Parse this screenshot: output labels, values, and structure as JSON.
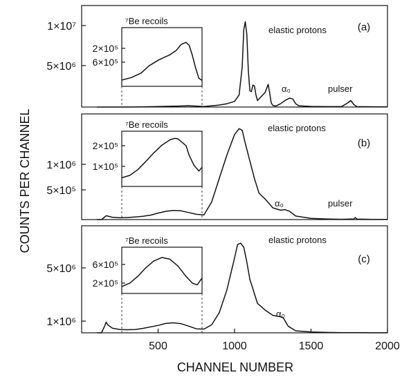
{
  "chart_data": [
    {
      "type": "line",
      "panel_label": "(a)",
      "x": [
        100,
        200,
        300,
        400,
        500,
        600,
        700,
        800,
        850,
        900,
        950,
        1000,
        1030,
        1050,
        1060,
        1070,
        1080,
        1090,
        1100,
        1110,
        1120,
        1130,
        1140,
        1150,
        1160,
        1180,
        1200,
        1220,
        1230,
        1240,
        1250,
        1270,
        1300,
        1330,
        1360,
        1380,
        1400,
        1420,
        1500,
        1600,
        1700,
        1740,
        1760,
        1780,
        1800,
        1900,
        2000
      ],
      "y": [
        0,
        0,
        0,
        20000,
        60000,
        100000,
        160000,
        60000,
        150000,
        250000,
        400000,
        700000,
        1500000,
        5000000,
        9500000,
        10500000,
        9000000,
        4500000,
        2000000,
        1900000,
        2700000,
        2600000,
        1500000,
        800000,
        1000000,
        1400000,
        1800000,
        2800000,
        1700000,
        500000,
        200000,
        120000,
        400000,
        800000,
        1100000,
        1000000,
        400000,
        150000,
        80000,
        50000,
        60000,
        500000,
        800000,
        300000,
        50000,
        30000,
        20000
      ],
      "ylim": [
        0,
        12500000
      ],
      "yticks": [
        "5×10⁶",
        "1×10⁷"
      ],
      "annotations": [
        "elastic protons",
        "α₀",
        "pulser"
      ],
      "inset": {
        "title": "⁷Be recoils",
        "yticks": [
          "2×10⁵",
          "6×10⁵"
        ],
        "ylim": [
          0,
          8000000
        ],
        "x": [
          300,
          360,
          420,
          470,
          530,
          560,
          600,
          640,
          670,
          700,
          720,
          740,
          760,
          780,
          800
        ],
        "y": [
          850000,
          1200000,
          1800000,
          2800000,
          3600000,
          3900000,
          4300000,
          4900000,
          5700000,
          6000000,
          5600000,
          4200000,
          2500000,
          1100000,
          800000
        ]
      }
    },
    {
      "type": "line",
      "panel_label": "(b)",
      "x": [
        100,
        130,
        160,
        170,
        200,
        250,
        300,
        350,
        400,
        450,
        500,
        550,
        600,
        650,
        700,
        750,
        800,
        850,
        900,
        950,
        1000,
        1030,
        1050,
        1070,
        1100,
        1130,
        1160,
        1200,
        1250,
        1300,
        1330,
        1360,
        1400,
        1500,
        1600,
        1700,
        1780,
        1790,
        1800,
        1900,
        2000
      ],
      "y": [
        0,
        0,
        65000,
        60000,
        40000,
        30000,
        35000,
        45000,
        55000,
        75000,
        110000,
        140000,
        155000,
        150000,
        120000,
        90000,
        80000,
        300000,
        700000,
        1100000,
        1450000,
        1550000,
        1520000,
        1300000,
        1000000,
        700000,
        450000,
        350000,
        200000,
        160000,
        170000,
        140000,
        60000,
        20000,
        10000,
        5000,
        10000,
        35000,
        8000,
        4000,
        2000
      ],
      "ylim": [
        0,
        1800000
      ],
      "yticks": [
        "5×10⁵",
        "1×10⁶"
      ],
      "annotations": [
        "elastic protons",
        "α₀",
        "pulser"
      ],
      "inset": {
        "title": "⁷Be recoils",
        "yticks": [
          "1×10⁵",
          "2×10⁵"
        ],
        "ylim": [
          0,
          1150000
        ],
        "x": [
          300,
          350,
          400,
          450,
          500,
          550,
          600,
          630,
          650,
          700,
          720,
          750,
          780,
          800
        ],
        "y": [
          180000,
          230000,
          350000,
          520000,
          700000,
          860000,
          970000,
          1000000,
          990000,
          850000,
          650000,
          440000,
          320000,
          400000
        ]
      }
    },
    {
      "type": "line",
      "panel_label": "(c)",
      "x": [
        100,
        130,
        150,
        160,
        170,
        200,
        250,
        300,
        350,
        400,
        500,
        550,
        600,
        650,
        700,
        750,
        800,
        850,
        900,
        950,
        1000,
        1020,
        1040,
        1060,
        1080,
        1100,
        1150,
        1200,
        1250,
        1300,
        1320,
        1350,
        1400,
        1500,
        1600,
        1700,
        1800,
        1900,
        2000
      ],
      "y": [
        0,
        0,
        500000,
        800000,
        600000,
        350000,
        250000,
        230000,
        250000,
        330000,
        550000,
        700000,
        750000,
        680000,
        500000,
        300000,
        280000,
        600000,
        1500000,
        3200000,
        5600000,
        6600000,
        6700000,
        6400000,
        5300000,
        4000000,
        2200000,
        1700000,
        1300000,
        1200000,
        1100000,
        500000,
        150000,
        60000,
        30000,
        15000,
        10000,
        5000,
        3000
      ],
      "ylim": [
        0,
        8000000
      ],
      "yticks": [
        "1×10⁶",
        "5×10⁶"
      ],
      "annotations": [
        "elastic protons",
        "α₀"
      ],
      "inset": {
        "title": "⁷Be recoils",
        "yticks": [
          "2×10⁵",
          "6×10⁵"
        ],
        "ylim": [
          0,
          13500000
        ],
        "x": [
          300,
          350,
          400,
          450,
          500,
          550,
          600,
          650,
          700,
          740,
          770,
          800
        ],
        "y": [
          2000000,
          3000000,
          5000000,
          7500000,
          9500000,
          10500000,
          10000000,
          8000000,
          5000000,
          3000000,
          2500000,
          4500000
        ]
      }
    }
  ],
  "axes": {
    "xlabel": "CHANNEL NUMBER",
    "ylabel": "COUNTS PER CHANNEL",
    "xlim": [
      0,
      2000
    ],
    "xticks": [
      500,
      1000,
      1500,
      2000
    ]
  }
}
